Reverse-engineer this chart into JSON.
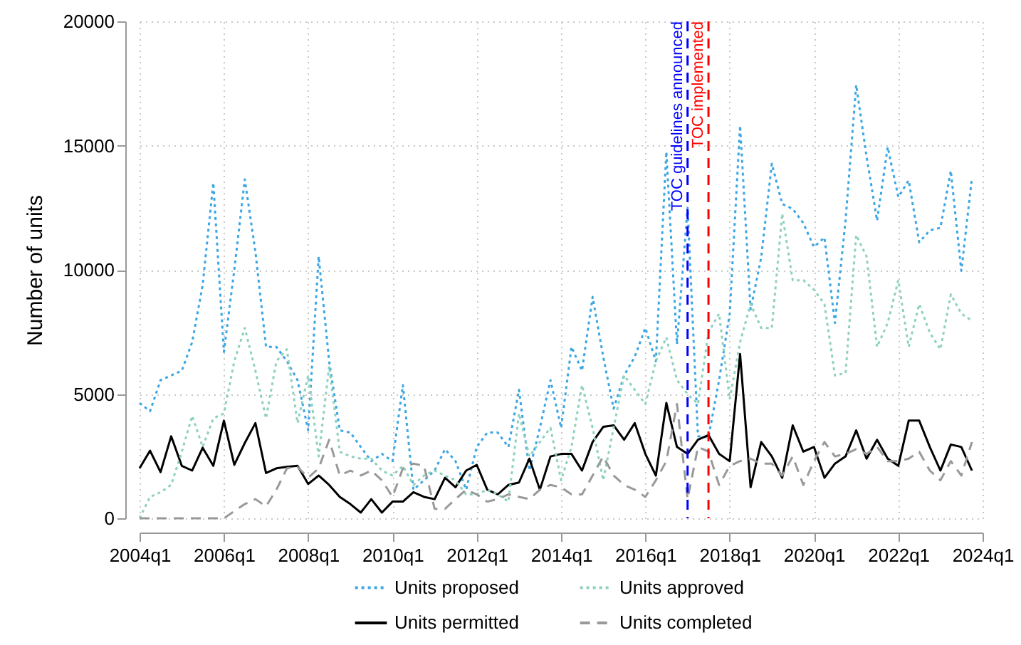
{
  "chart_data": {
    "type": "line",
    "ylabel": "Number of units",
    "x": [
      "2004-01",
      "2004-04",
      "2004-07",
      "2004-10",
      "2005-01",
      "2005-04",
      "2005-07",
      "2005-10",
      "2006-01",
      "2006-04",
      "2006-07",
      "2006-10",
      "2007-01",
      "2007-04",
      "2007-07",
      "2007-10",
      "2008-01",
      "2008-04",
      "2008-07",
      "2008-10",
      "2009-01",
      "2009-04",
      "2009-07",
      "2009-10",
      "2010-01",
      "2010-04",
      "2010-07",
      "2010-10",
      "2011-01",
      "2011-04",
      "2011-07",
      "2011-10",
      "2012-01",
      "2012-04",
      "2012-07",
      "2012-10",
      "2013-01",
      "2013-04",
      "2013-07",
      "2013-10",
      "2014-01",
      "2014-04",
      "2014-07",
      "2014-10",
      "2015-01",
      "2015-04",
      "2015-07",
      "2015-10",
      "2016-01",
      "2016-04",
      "2016-07",
      "2016-10",
      "2017-01",
      "2017-04",
      "2017-07",
      "2017-10",
      "2018-01",
      "2018-04",
      "2018-07",
      "2018-10",
      "2019-01",
      "2019-04",
      "2019-07",
      "2019-10",
      "2020-01",
      "2020-04",
      "2020-07",
      "2020-10",
      "2021-01",
      "2021-04",
      "2021-07",
      "2021-10",
      "2022-01",
      "2022-04",
      "2022-07",
      "2022-10",
      "2023-01",
      "2023-04",
      "2023-07",
      "2023-10"
    ],
    "series": [
      {
        "name": "Units proposed",
        "color": "#3aa6e4",
        "line_style": "dotted",
        "values": [
          4640,
          4310,
          5560,
          5750,
          5940,
          7090,
          9390,
          13500,
          6700,
          10000,
          13640,
          10730,
          6900,
          6900,
          6320,
          5560,
          3540,
          10540,
          6320,
          3540,
          3450,
          2870,
          2300,
          2590,
          2300,
          5360,
          1150,
          1530,
          1920,
          2780,
          2300,
          1150,
          2870,
          3450,
          3450,
          2870,
          5170,
          1920,
          3640,
          5560,
          3640,
          6900,
          5940,
          8910,
          6500,
          4410,
          5750,
          6500,
          7660,
          6320,
          14750,
          7000,
          12500,
          3300,
          3260,
          5560,
          8240,
          15800,
          8400,
          10500,
          14270,
          12650,
          12450,
          11880,
          10920,
          11300,
          7860,
          12000,
          17440,
          14560,
          11980,
          14940,
          12930,
          13600,
          11110,
          11590,
          11690,
          13990,
          9960,
          13700
        ]
      },
      {
        "name": "Units permitted",
        "color": "#000000",
        "line_style": "solid",
        "values": [
          2010,
          2720,
          1860,
          3300,
          2110,
          1920,
          2840,
          2110,
          3930,
          2150,
          3030,
          3830,
          1820,
          2010,
          2070,
          2110,
          1380,
          1720,
          1340,
          860,
          570,
          230,
          770,
          230,
          670,
          670,
          1050,
          860,
          770,
          1630,
          1250,
          1920,
          2150,
          1150,
          960,
          1340,
          1440,
          2400,
          1150,
          2490,
          2590,
          2590,
          1920,
          3070,
          3680,
          3740,
          3160,
          3830,
          2590,
          1720,
          4640,
          2870,
          2590,
          3160,
          3350,
          2590,
          2300,
          6610,
          1250,
          3070,
          2490,
          1630,
          3740,
          2680,
          2870,
          1630,
          2200,
          2490,
          3540,
          2400,
          3160,
          2400,
          2110,
          3930,
          3930,
          2870,
          1920,
          2970,
          2870,
          1920
        ]
      },
      {
        "name": "Units approved",
        "color": "#8ed1bd",
        "line_style": "dotted",
        "values": [
          0,
          860,
          1050,
          1340,
          2680,
          4120,
          2870,
          4020,
          4220,
          6320,
          7660,
          5940,
          4020,
          6320,
          6800,
          3830,
          5750,
          2490,
          6130,
          2680,
          2490,
          2400,
          2400,
          1920,
          1720,
          2110,
          1340,
          1720,
          1920,
          1720,
          1530,
          960,
          960,
          1150,
          960,
          670,
          4220,
          2490,
          3070,
          3640,
          1530,
          2870,
          5360,
          3640,
          1530,
          3640,
          5750,
          5170,
          4600,
          6320,
          7280,
          5560,
          5000,
          4600,
          7470,
          8240,
          4790,
          7090,
          8620,
          7660,
          7660,
          12260,
          9580,
          9580,
          9200,
          8620,
          5750,
          5840,
          11400,
          10540,
          6900,
          7860,
          9580,
          6900,
          8620,
          7470,
          6800,
          9010,
          8240,
          7950
        ]
      },
      {
        "name": "Units completed",
        "color": "#999999",
        "line_style": "dashed",
        "values": [
          0,
          0,
          0,
          0,
          0,
          0,
          0,
          0,
          0,
          290,
          570,
          770,
          480,
          1150,
          2010,
          2070,
          1630,
          2010,
          3160,
          1720,
          1920,
          1720,
          1920,
          1530,
          860,
          2010,
          2200,
          2110,
          380,
          380,
          770,
          1150,
          960,
          670,
          770,
          960,
          860,
          770,
          1150,
          1340,
          1250,
          960,
          960,
          1720,
          2490,
          1720,
          1340,
          1150,
          860,
          1530,
          2300,
          4600,
          770,
          2870,
          2680,
          1340,
          2110,
          2300,
          2400,
          2200,
          2200,
          1720,
          2490,
          1340,
          2300,
          3070,
          2490,
          2590,
          2780,
          2590,
          2870,
          2300,
          2300,
          2400,
          2680,
          1920,
          1530,
          2300,
          1720,
          3070
        ]
      }
    ],
    "xlim": [
      "2004-01",
      "2024-01"
    ],
    "xticks": [
      {
        "value": "2004-01",
        "label": "2004q1"
      },
      {
        "value": "2006-01",
        "label": "2006q1"
      },
      {
        "value": "2008-01",
        "label": "2008q1"
      },
      {
        "value": "2010-01",
        "label": "2010q1"
      },
      {
        "value": "2012-01",
        "label": "2012q1"
      },
      {
        "value": "2014-01",
        "label": "2014q1"
      },
      {
        "value": "2016-01",
        "label": "2016q1"
      },
      {
        "value": "2018-01",
        "label": "2018q1"
      },
      {
        "value": "2020-01",
        "label": "2020q1"
      },
      {
        "value": "2022-01",
        "label": "2022q1"
      },
      {
        "value": "2024-01",
        "label": "2024q1"
      }
    ],
    "ylim": [
      0,
      20000
    ],
    "yticks": [
      0,
      5000,
      10000,
      15000,
      20000
    ],
    "ref_lines": [
      {
        "axis": "x",
        "value": "2017-01",
        "label": "TOC guidelines announced",
        "color": "#0000ff",
        "line_style": "dashed"
      },
      {
        "axis": "x",
        "value": "2017-07",
        "label": "TOC implemented",
        "color": "#ff0000",
        "line_style": "dashed"
      }
    ],
    "grid": true,
    "legend": "bottom",
    "marker": "none"
  }
}
